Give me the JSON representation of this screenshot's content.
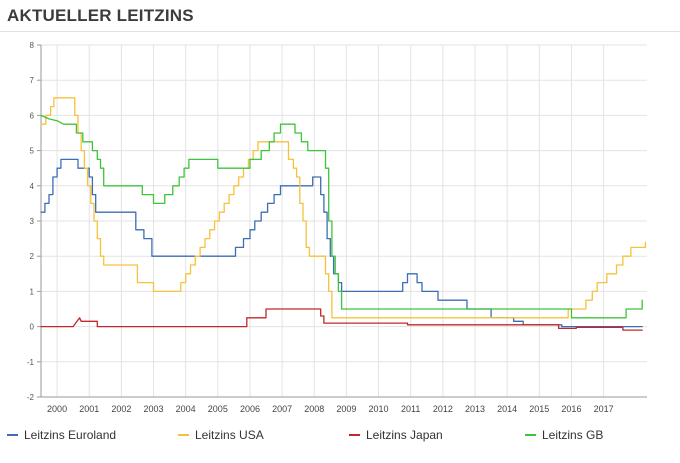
{
  "page": {
    "title": "AKTUELLER LEITZINS"
  },
  "chart_data": {
    "type": "line",
    "title": "AKTUELLER LEITZINS",
    "xlabel": "",
    "ylabel": "",
    "xlim": [
      1999.5,
      2018.35
    ],
    "ylim": [
      -2,
      8
    ],
    "yticks": [
      -2,
      -1,
      0,
      1,
      2,
      3,
      4,
      5,
      6,
      7,
      8
    ],
    "xticks": [
      2000,
      2001,
      2002,
      2003,
      2004,
      2005,
      2006,
      2007,
      2008,
      2009,
      2010,
      2011,
      2012,
      2013,
      2014,
      2015,
      2016,
      2017
    ],
    "xtick_labels": [
      "2000",
      "2001",
      "2002",
      "2003",
      "2004",
      "2005",
      "2006",
      "2007",
      "2008",
      "2009",
      "2010",
      "2011",
      "2012",
      "2013",
      "2014",
      "2015",
      "2016",
      "2017"
    ],
    "grid": true,
    "legend_position": "bottom",
    "series": [
      {
        "name": "Leitzins Euroland",
        "color": "#3d6db5",
        "points": [
          [
            1999.5,
            3.25
          ],
          [
            1999.62,
            3.25
          ],
          [
            1999.62,
            3.5
          ],
          [
            1999.75,
            3.5
          ],
          [
            1999.75,
            3.75
          ],
          [
            1999.87,
            3.75
          ],
          [
            1999.87,
            4.25
          ],
          [
            2000.0,
            4.25
          ],
          [
            2000.0,
            4.5
          ],
          [
            2000.12,
            4.5
          ],
          [
            2000.12,
            4.75
          ],
          [
            2000.65,
            4.75
          ],
          [
            2000.65,
            4.5
          ],
          [
            2001.0,
            4.5
          ],
          [
            2001.0,
            4.25
          ],
          [
            2001.1,
            4.25
          ],
          [
            2001.1,
            3.75
          ],
          [
            2001.2,
            3.75
          ],
          [
            2001.2,
            3.25
          ],
          [
            2002.45,
            3.25
          ],
          [
            2002.45,
            2.75
          ],
          [
            2002.7,
            2.75
          ],
          [
            2002.7,
            2.5
          ],
          [
            2002.95,
            2.5
          ],
          [
            2002.95,
            2.0
          ],
          [
            2005.55,
            2.0
          ],
          [
            2005.55,
            2.25
          ],
          [
            2005.8,
            2.25
          ],
          [
            2005.8,
            2.5
          ],
          [
            2006.0,
            2.5
          ],
          [
            2006.0,
            2.75
          ],
          [
            2006.15,
            2.75
          ],
          [
            2006.15,
            3.0
          ],
          [
            2006.35,
            3.0
          ],
          [
            2006.35,
            3.25
          ],
          [
            2006.55,
            3.25
          ],
          [
            2006.55,
            3.5
          ],
          [
            2006.75,
            3.5
          ],
          [
            2006.75,
            3.75
          ],
          [
            2006.95,
            3.75
          ],
          [
            2006.95,
            4.0
          ],
          [
            2007.95,
            4.0
          ],
          [
            2007.95,
            4.25
          ],
          [
            2008.2,
            4.25
          ],
          [
            2008.2,
            3.75
          ],
          [
            2008.3,
            3.75
          ],
          [
            2008.3,
            3.25
          ],
          [
            2008.4,
            3.25
          ],
          [
            2008.4,
            2.5
          ],
          [
            2008.5,
            2.5
          ],
          [
            2008.5,
            2.0
          ],
          [
            2008.6,
            2.0
          ],
          [
            2008.6,
            1.5
          ],
          [
            2008.75,
            1.5
          ],
          [
            2008.75,
            1.25
          ],
          [
            2008.85,
            1.25
          ],
          [
            2008.85,
            1.0
          ],
          [
            2010.75,
            1.0
          ],
          [
            2010.75,
            1.25
          ],
          [
            2010.9,
            1.25
          ],
          [
            2010.9,
            1.5
          ],
          [
            2011.2,
            1.5
          ],
          [
            2011.2,
            1.25
          ],
          [
            2011.35,
            1.25
          ],
          [
            2011.35,
            1.0
          ],
          [
            2011.85,
            1.0
          ],
          [
            2011.85,
            0.75
          ],
          [
            2012.75,
            0.75
          ],
          [
            2012.75,
            0.5
          ],
          [
            2013.5,
            0.5
          ],
          [
            2013.5,
            0.25
          ],
          [
            2014.2,
            0.25
          ],
          [
            2014.2,
            0.15
          ],
          [
            2014.5,
            0.15
          ],
          [
            2014.5,
            0.05
          ],
          [
            2015.7,
            0.05
          ],
          [
            2015.7,
            0.0
          ],
          [
            2018.2,
            0.0
          ]
        ]
      },
      {
        "name": "Leitzins USA",
        "color": "#f7c13d",
        "points": [
          [
            1999.5,
            5.75
          ],
          [
            1999.65,
            5.75
          ],
          [
            1999.65,
            6.0
          ],
          [
            1999.8,
            6.0
          ],
          [
            1999.8,
            6.25
          ],
          [
            1999.9,
            6.25
          ],
          [
            1999.9,
            6.5
          ],
          [
            2000.55,
            6.5
          ],
          [
            2000.55,
            6.0
          ],
          [
            2000.65,
            6.0
          ],
          [
            2000.65,
            5.5
          ],
          [
            2000.75,
            5.5
          ],
          [
            2000.75,
            5.0
          ],
          [
            2000.85,
            5.0
          ],
          [
            2000.85,
            4.5
          ],
          [
            2000.95,
            4.5
          ],
          [
            2000.95,
            4.0
          ],
          [
            2001.05,
            4.0
          ],
          [
            2001.05,
            3.5
          ],
          [
            2001.15,
            3.5
          ],
          [
            2001.15,
            3.0
          ],
          [
            2001.25,
            3.0
          ],
          [
            2001.25,
            2.5
          ],
          [
            2001.35,
            2.5
          ],
          [
            2001.35,
            2.0
          ],
          [
            2001.45,
            2.0
          ],
          [
            2001.45,
            1.75
          ],
          [
            2002.5,
            1.75
          ],
          [
            2002.5,
            1.25
          ],
          [
            2003.0,
            1.25
          ],
          [
            2003.0,
            1.0
          ],
          [
            2003.85,
            1.0
          ],
          [
            2003.85,
            1.25
          ],
          [
            2004.0,
            1.25
          ],
          [
            2004.0,
            1.5
          ],
          [
            2004.15,
            1.5
          ],
          [
            2004.15,
            1.75
          ],
          [
            2004.3,
            1.75
          ],
          [
            2004.3,
            2.0
          ],
          [
            2004.45,
            2.0
          ],
          [
            2004.45,
            2.25
          ],
          [
            2004.6,
            2.25
          ],
          [
            2004.6,
            2.5
          ],
          [
            2004.75,
            2.5
          ],
          [
            2004.75,
            2.75
          ],
          [
            2004.9,
            2.75
          ],
          [
            2004.9,
            3.0
          ],
          [
            2005.05,
            3.0
          ],
          [
            2005.05,
            3.25
          ],
          [
            2005.2,
            3.25
          ],
          [
            2005.2,
            3.5
          ],
          [
            2005.35,
            3.5
          ],
          [
            2005.35,
            3.75
          ],
          [
            2005.5,
            3.75
          ],
          [
            2005.5,
            4.0
          ],
          [
            2005.65,
            4.0
          ],
          [
            2005.65,
            4.25
          ],
          [
            2005.8,
            4.25
          ],
          [
            2005.8,
            4.5
          ],
          [
            2005.95,
            4.5
          ],
          [
            2005.95,
            4.75
          ],
          [
            2006.1,
            4.75
          ],
          [
            2006.1,
            5.0
          ],
          [
            2006.25,
            5.0
          ],
          [
            2006.25,
            5.25
          ],
          [
            2007.2,
            5.25
          ],
          [
            2007.2,
            4.75
          ],
          [
            2007.35,
            4.75
          ],
          [
            2007.35,
            4.5
          ],
          [
            2007.45,
            4.5
          ],
          [
            2007.45,
            4.25
          ],
          [
            2007.55,
            4.25
          ],
          [
            2007.55,
            3.5
          ],
          [
            2007.65,
            3.5
          ],
          [
            2007.65,
            3.0
          ],
          [
            2007.75,
            3.0
          ],
          [
            2007.75,
            2.25
          ],
          [
            2007.85,
            2.25
          ],
          [
            2007.85,
            2.0
          ],
          [
            2008.35,
            2.0
          ],
          [
            2008.35,
            1.5
          ],
          [
            2008.45,
            1.5
          ],
          [
            2008.45,
            1.0
          ],
          [
            2008.55,
            1.0
          ],
          [
            2008.55,
            0.25
          ],
          [
            2015.9,
            0.25
          ],
          [
            2015.9,
            0.5
          ],
          [
            2016.45,
            0.5
          ],
          [
            2016.45,
            0.75
          ],
          [
            2016.65,
            0.75
          ],
          [
            2016.65,
            1.0
          ],
          [
            2016.8,
            1.0
          ],
          [
            2016.8,
            1.25
          ],
          [
            2017.1,
            1.25
          ],
          [
            2017.1,
            1.5
          ],
          [
            2017.4,
            1.5
          ],
          [
            2017.4,
            1.75
          ],
          [
            2017.6,
            1.75
          ],
          [
            2017.6,
            2.0
          ],
          [
            2017.85,
            2.0
          ],
          [
            2017.85,
            2.25
          ],
          [
            2018.3,
            2.25
          ],
          [
            2018.3,
            2.4
          ]
        ]
      },
      {
        "name": "Leitzins Japan",
        "color": "#c0282d",
        "points": [
          [
            1999.5,
            0.0
          ],
          [
            2000.5,
            0.0
          ],
          [
            2000.7,
            0.25
          ],
          [
            2000.75,
            0.15
          ],
          [
            2001.25,
            0.15
          ],
          [
            2001.25,
            0.0
          ],
          [
            2005.9,
            0.0
          ],
          [
            2005.9,
            0.25
          ],
          [
            2006.5,
            0.25
          ],
          [
            2006.5,
            0.5
          ],
          [
            2008.2,
            0.5
          ],
          [
            2008.2,
            0.3
          ],
          [
            2008.3,
            0.3
          ],
          [
            2008.3,
            0.1
          ],
          [
            2010.9,
            0.1
          ],
          [
            2010.9,
            0.05
          ],
          [
            2015.6,
            0.05
          ],
          [
            2015.6,
            -0.05
          ],
          [
            2016.15,
            -0.05
          ],
          [
            2016.15,
            -0.02
          ],
          [
            2017.6,
            -0.02
          ],
          [
            2017.6,
            -0.1
          ],
          [
            2018.2,
            -0.1
          ]
        ]
      },
      {
        "name": "Leitzins GB",
        "color": "#3ec43b",
        "points": [
          [
            1999.5,
            6.0
          ],
          [
            1999.75,
            5.9
          ],
          [
            2000.0,
            5.85
          ],
          [
            2000.2,
            5.75
          ],
          [
            2000.6,
            5.75
          ],
          [
            2000.6,
            5.5
          ],
          [
            2000.8,
            5.5
          ],
          [
            2000.8,
            5.25
          ],
          [
            2001.1,
            5.25
          ],
          [
            2001.1,
            5.0
          ],
          [
            2001.25,
            5.0
          ],
          [
            2001.25,
            4.75
          ],
          [
            2001.35,
            4.75
          ],
          [
            2001.35,
            4.5
          ],
          [
            2001.45,
            4.5
          ],
          [
            2001.45,
            4.0
          ],
          [
            2002.65,
            4.0
          ],
          [
            2002.65,
            3.75
          ],
          [
            2003.0,
            3.75
          ],
          [
            2003.0,
            3.5
          ],
          [
            2003.35,
            3.5
          ],
          [
            2003.35,
            3.75
          ],
          [
            2003.6,
            3.75
          ],
          [
            2003.6,
            4.0
          ],
          [
            2003.8,
            4.0
          ],
          [
            2003.8,
            4.25
          ],
          [
            2003.95,
            4.25
          ],
          [
            2003.95,
            4.5
          ],
          [
            2004.1,
            4.5
          ],
          [
            2004.1,
            4.75
          ],
          [
            2005.0,
            4.75
          ],
          [
            2005.0,
            4.5
          ],
          [
            2006.0,
            4.5
          ],
          [
            2006.0,
            4.75
          ],
          [
            2006.35,
            4.75
          ],
          [
            2006.35,
            5.0
          ],
          [
            2006.6,
            5.0
          ],
          [
            2006.6,
            5.25
          ],
          [
            2006.75,
            5.25
          ],
          [
            2006.75,
            5.5
          ],
          [
            2006.95,
            5.5
          ],
          [
            2006.95,
            5.75
          ],
          [
            2007.4,
            5.75
          ],
          [
            2007.4,
            5.5
          ],
          [
            2007.6,
            5.5
          ],
          [
            2007.6,
            5.25
          ],
          [
            2007.8,
            5.25
          ],
          [
            2007.8,
            5.0
          ],
          [
            2008.35,
            5.0
          ],
          [
            2008.35,
            4.5
          ],
          [
            2008.45,
            4.5
          ],
          [
            2008.45,
            3.0
          ],
          [
            2008.55,
            3.0
          ],
          [
            2008.55,
            2.0
          ],
          [
            2008.65,
            2.0
          ],
          [
            2008.65,
            1.5
          ],
          [
            2008.75,
            1.5
          ],
          [
            2008.75,
            1.0
          ],
          [
            2008.85,
            1.0
          ],
          [
            2008.85,
            0.5
          ],
          [
            2016.0,
            0.5
          ],
          [
            2016.0,
            0.25
          ],
          [
            2017.7,
            0.25
          ],
          [
            2017.7,
            0.5
          ],
          [
            2018.2,
            0.5
          ],
          [
            2018.2,
            0.75
          ]
        ]
      }
    ]
  }
}
